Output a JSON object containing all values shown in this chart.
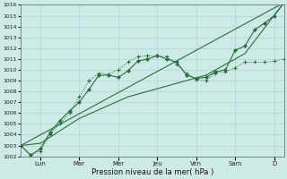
{
  "xlabel": "Pression niveau de la mer( hPa )",
  "bg_color": "#ceeae7",
  "grid_color": "#b0d5d2",
  "line_color": "#2d6e3e",
  "ylim": [
    1002,
    1016
  ],
  "yticks": [
    1002,
    1003,
    1004,
    1005,
    1006,
    1007,
    1008,
    1009,
    1010,
    1011,
    1012,
    1013,
    1014,
    1015,
    1016
  ],
  "day_labels": [
    "Lun",
    "Mar",
    "Mer",
    "Jeu",
    "Ven",
    "Sam",
    "D"
  ],
  "day_positions": [
    1,
    3,
    5,
    7,
    9,
    11,
    13
  ],
  "xlim": [
    0,
    13.5
  ],
  "series_dot_x": [
    0,
    0.5,
    1.0,
    1.5,
    2.0,
    2.5,
    3.0,
    3.5,
    4.0,
    4.5,
    5.0,
    5.5,
    6.0,
    6.5,
    7.0,
    7.5,
    8.0,
    8.5,
    9.0,
    9.5,
    10.0,
    10.5,
    11.0,
    11.5,
    12.0,
    12.5,
    13.0,
    13.5
  ],
  "series_dot_y": [
    1003.0,
    1002.1,
    1002.5,
    1004.0,
    1005.0,
    1006.0,
    1007.5,
    1009.0,
    1009.7,
    1009.6,
    1010.0,
    1010.7,
    1011.2,
    1011.3,
    1011.3,
    1011.2,
    1010.5,
    1009.7,
    1009.1,
    1009.0,
    1009.7,
    1009.8,
    1010.2,
    1010.7,
    1010.7,
    1010.7,
    1010.8,
    1011.0
  ],
  "series_mark_x": [
    0,
    0.5,
    1.0,
    1.5,
    2.0,
    2.5,
    3.0,
    3.5,
    4.0,
    4.5,
    5.0,
    5.5,
    6.0,
    6.5,
    7.0,
    7.5,
    8.0,
    8.5,
    9.0,
    9.5,
    10.0,
    10.5,
    11.0,
    11.5,
    12.0,
    12.5,
    13.0,
    13.5
  ],
  "series_mark_y": [
    1003.0,
    1002.1,
    1002.7,
    1004.2,
    1005.3,
    1006.2,
    1007.0,
    1008.2,
    1009.5,
    1009.5,
    1009.3,
    1009.9,
    1010.8,
    1011.0,
    1011.3,
    1011.0,
    1010.7,
    1009.5,
    1009.2,
    1009.3,
    1009.8,
    1010.0,
    1011.8,
    1012.2,
    1013.7,
    1014.3,
    1015.0,
    1016.2
  ],
  "series_line_x": [
    0,
    13.5
  ],
  "series_line_y": [
    1003.0,
    1016.2
  ],
  "series_line2_x": [
    0,
    1.0,
    3.0,
    5.5,
    7.5,
    9.5,
    11.5,
    13.5
  ],
  "series_line2_y": [
    1003.0,
    1003.2,
    1005.5,
    1007.5,
    1008.5,
    1009.5,
    1011.5,
    1016.2
  ]
}
